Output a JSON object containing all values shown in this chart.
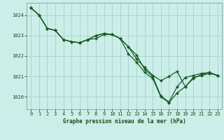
{
  "title": "Graphe pression niveau de la mer (hPa)",
  "bg_color": "#cceee8",
  "grid_color": "#aad4ce",
  "line_color": "#1a5c28",
  "marker_color": "#1a5c28",
  "xlim": [
    -0.5,
    23.5
  ],
  "ylim": [
    1019.4,
    1024.6
  ],
  "yticks": [
    1020,
    1021,
    1022,
    1023,
    1024
  ],
  "xticks": [
    0,
    1,
    2,
    3,
    4,
    5,
    6,
    7,
    8,
    9,
    10,
    11,
    12,
    13,
    14,
    15,
    16,
    17,
    18,
    19,
    20,
    21,
    22,
    23
  ],
  "series": [
    [
      1024.35,
      1024.0,
      1023.35,
      1023.25,
      1022.8,
      1022.7,
      1022.65,
      1022.8,
      1022.85,
      1023.05,
      1023.05,
      1022.85,
      1022.45,
      1021.85,
      1021.45,
      1021.05,
      1020.8,
      1021.0,
      1021.25,
      1020.5,
      1020.95,
      1021.05,
      1021.15,
      1021.05
    ],
    [
      1024.35,
      1024.0,
      1023.35,
      1023.25,
      1022.8,
      1022.7,
      1022.65,
      1022.8,
      1023.0,
      1023.1,
      1023.05,
      1022.85,
      1022.45,
      1022.05,
      1021.35,
      1021.0,
      1020.05,
      1019.75,
      1020.5,
      1020.95,
      1021.05,
      1021.15,
      1021.2,
      1021.05
    ],
    [
      1024.35,
      1024.0,
      1023.35,
      1023.25,
      1022.8,
      1022.7,
      1022.65,
      1022.8,
      1023.0,
      1023.1,
      1023.05,
      1022.85,
      1022.1,
      1021.7,
      1021.2,
      1020.9,
      1020.0,
      1019.72,
      1020.2,
      1020.5,
      1020.9,
      1021.1,
      1021.15,
      1021.05
    ]
  ]
}
